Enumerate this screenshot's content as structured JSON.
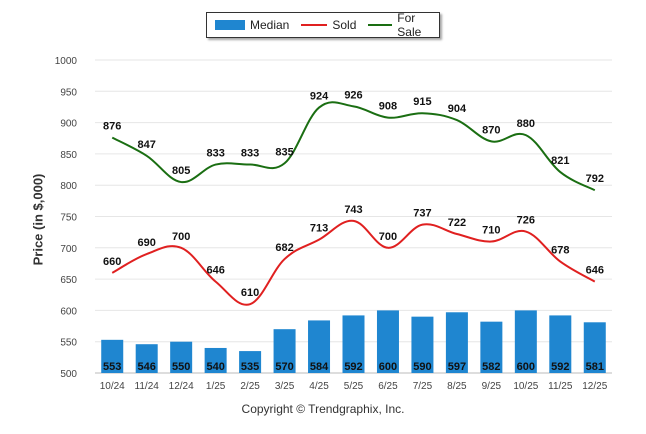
{
  "chart_data": {
    "type": "bar+line",
    "categories": [
      "10/24",
      "11/24",
      "12/24",
      "1/25",
      "2/25",
      "3/25",
      "4/25",
      "5/25",
      "6/25",
      "7/25",
      "8/25",
      "9/25",
      "10/25",
      "11/25",
      "12/25"
    ],
    "series": [
      {
        "name": "Median",
        "kind": "bar",
        "color": "#1f86d0",
        "values": [
          553,
          546,
          550,
          540,
          535,
          570,
          584,
          592,
          600,
          590,
          597,
          582,
          600,
          592,
          581
        ]
      },
      {
        "name": "Sold",
        "kind": "line",
        "color": "#e02020",
        "values": [
          660,
          690,
          700,
          646,
          610,
          682,
          713,
          743,
          700,
          737,
          722,
          710,
          726,
          678,
          646
        ]
      },
      {
        "name": "For Sale",
        "kind": "line",
        "color": "#1a6e12",
        "values": [
          876,
          847,
          805,
          833,
          833,
          835,
          924,
          926,
          908,
          915,
          904,
          870,
          880,
          821,
          792
        ]
      }
    ],
    "ylabel": "Price (in $,000)",
    "ylim": [
      500,
      1000
    ],
    "yticks": [
      500,
      550,
      600,
      650,
      700,
      750,
      800,
      850,
      900,
      950,
      1000
    ],
    "grid": true,
    "legend": "top-center"
  },
  "footer": {
    "copyright": "Copyright © Trendgraphix, Inc."
  }
}
